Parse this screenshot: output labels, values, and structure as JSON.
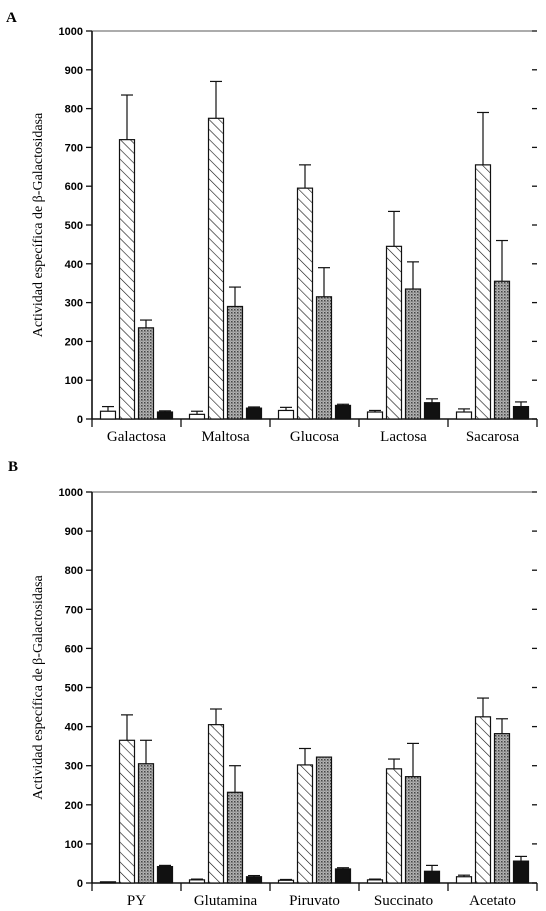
{
  "chart_data": [
    {
      "panel": "A",
      "type": "bar",
      "ylabel": "Actividad específica de β-Galactosidasa",
      "ylim": [
        0,
        1000
      ],
      "yticks": [
        "0",
        "100",
        "200",
        "300",
        "400",
        "500",
        "600",
        "700",
        "800",
        "900",
        "1000"
      ],
      "categories": [
        "Galactosa",
        "Maltosa",
        "Glucosa",
        "Lactosa",
        "Sacarosa"
      ],
      "series": [
        {
          "pattern": "white",
          "values": [
            20,
            12,
            22,
            18,
            18
          ],
          "errors": [
            12,
            8,
            8,
            4,
            8
          ]
        },
        {
          "pattern": "hatched",
          "values": [
            720,
            775,
            595,
            445,
            655
          ],
          "errors": [
            115,
            95,
            60,
            90,
            135
          ]
        },
        {
          "pattern": "dotted",
          "values": [
            235,
            290,
            315,
            335,
            355
          ],
          "errors": [
            20,
            50,
            75,
            70,
            105
          ]
        },
        {
          "pattern": "black",
          "values": [
            18,
            28,
            35,
            42,
            32
          ],
          "errors": [
            3,
            3,
            3,
            10,
            12
          ]
        }
      ],
      "grid": false,
      "legend": "none"
    },
    {
      "panel": "B",
      "type": "bar",
      "ylabel": "Actividad específica de β-Galactosidasa",
      "ylim": [
        0,
        1000
      ],
      "yticks": [
        "0",
        "100",
        "200",
        "300",
        "400",
        "500",
        "600",
        "700",
        "800",
        "900",
        "1000"
      ],
      "categories": [
        "PY",
        "Glutamina",
        "Piruvato",
        "Succinato",
        "Acetato"
      ],
      "series": [
        {
          "pattern": "white",
          "values": [
            3,
            8,
            7,
            8,
            16
          ],
          "errors": [
            0,
            2,
            2,
            2,
            4
          ]
        },
        {
          "pattern": "hatched",
          "values": [
            365,
            405,
            302,
            292,
            425
          ],
          "errors": [
            65,
            40,
            42,
            25,
            48
          ]
        },
        {
          "pattern": "dotted",
          "values": [
            305,
            232,
            322,
            272,
            382
          ],
          "errors": [
            60,
            68,
            0,
            85,
            38
          ]
        },
        {
          "pattern": "black",
          "values": [
            42,
            16,
            36,
            30,
            56
          ],
          "errors": [
            3,
            3,
            3,
            15,
            12
          ]
        }
      ],
      "grid": false,
      "legend": "none"
    }
  ]
}
